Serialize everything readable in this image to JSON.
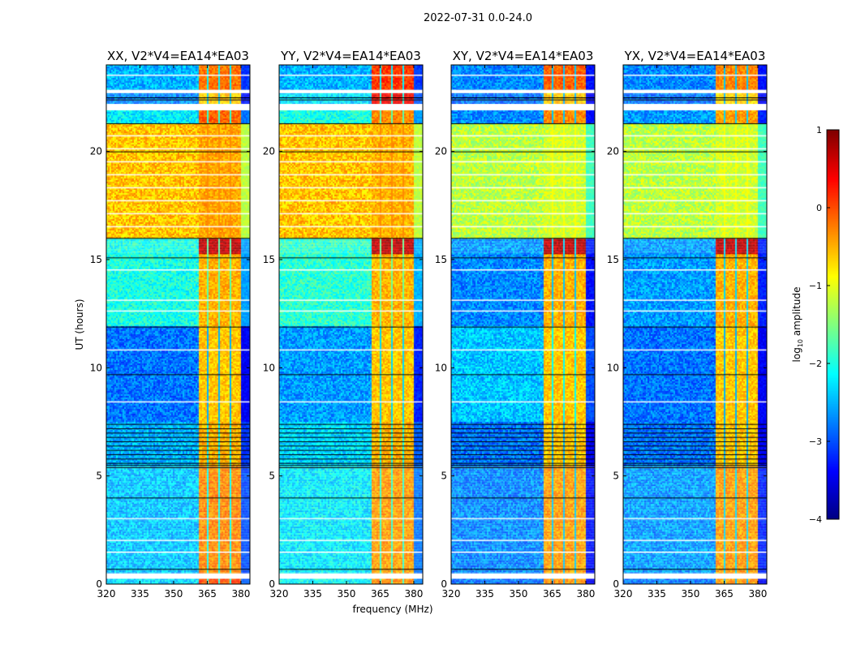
{
  "chart_data": {
    "type": "heatmap",
    "title": "2022-07-31 0.0-24.0",
    "xlabel": "frequency (MHz)",
    "ylabel": "UT (hours)",
    "xlim": [
      320,
      384
    ],
    "ylim": [
      0,
      24
    ],
    "xticks": [
      "320",
      "335",
      "350",
      "365",
      "380"
    ],
    "yticks": [
      "0",
      "5",
      "10",
      "15",
      "20"
    ],
    "colorbar": {
      "label_main": "log",
      "label_sub": "10",
      "label_rest": " amplitude",
      "range": [
        -4,
        1
      ],
      "ticks": [
        "1",
        "0",
        "−1",
        "−2",
        "−3",
        "−4"
      ],
      "colormap": "jet"
    },
    "rfi_band_mhz": [
      360.5,
      380
    ],
    "band_gaps_mhz": [
      365,
      370,
      375
    ],
    "flagged_white_hours": [
      [
        0.25,
        0.5
      ],
      [
        1.45,
        1.5
      ],
      [
        2.0,
        2.05
      ],
      [
        3.0,
        3.05
      ],
      [
        8.4,
        8.45
      ],
      [
        10.8,
        10.85
      ],
      [
        12.6,
        12.65
      ],
      [
        13.1,
        13.15
      ],
      [
        14.5,
        14.55
      ],
      [
        16.5,
        16.55
      ],
      [
        17.1,
        17.15
      ],
      [
        17.7,
        17.75
      ],
      [
        18.3,
        18.35
      ],
      [
        18.9,
        18.95
      ],
      [
        19.5,
        19.55
      ],
      [
        20.1,
        20.15
      ],
      [
        20.7,
        20.75
      ],
      [
        21.9,
        22.2
      ],
      [
        22.7,
        22.85
      ],
      [
        23.5,
        23.55
      ]
    ],
    "black_line_hours": [
      0.7,
      4.0,
      5.4,
      5.5,
      5.6,
      5.8,
      6.0,
      6.2,
      6.4,
      6.6,
      6.8,
      7.0,
      7.2,
      7.4,
      9.7,
      11.9,
      15.1,
      16.0,
      20.0,
      21.3,
      22.4,
      22.5
    ],
    "panels": [
      {
        "title": "XX, V2*V4=EA14*EA03",
        "segments": [
          [
            0,
            0.25,
            -2.3,
            0.0
          ],
          [
            0.5,
            5.5,
            -2.4,
            -0.3
          ],
          [
            5.5,
            7.5,
            -2.5,
            -0.5
          ],
          [
            7.5,
            12,
            -2.8,
            -0.6
          ],
          [
            12,
            15.3,
            -2.0,
            -0.5
          ],
          [
            15.3,
            16,
            -2.0,
            0.7
          ],
          [
            16,
            21.3,
            -0.6,
            -0.45
          ],
          [
            21.3,
            21.9,
            -2.2,
            -0.1
          ],
          [
            22.2,
            22.7,
            -2.7,
            -0.6
          ],
          [
            22.85,
            24,
            -2.5,
            -0.2
          ]
        ]
      },
      {
        "title": "YY, V2*V4=EA14*EA03",
        "segments": [
          [
            0,
            0.25,
            -2.1,
            -0.3
          ],
          [
            0.5,
            5.5,
            -2.2,
            -0.4
          ],
          [
            5.5,
            7.5,
            -2.3,
            -0.5
          ],
          [
            7.5,
            12,
            -2.6,
            -0.6
          ],
          [
            12,
            15.3,
            -1.9,
            -0.5
          ],
          [
            15.3,
            16,
            -1.9,
            0.7
          ],
          [
            16,
            21.3,
            -0.6,
            -0.5
          ],
          [
            21.3,
            21.9,
            -2.0,
            -0.3
          ],
          [
            22.2,
            22.7,
            -2.3,
            0.4
          ],
          [
            22.85,
            24,
            -2.5,
            0.1
          ]
        ]
      },
      {
        "title": "XY, V2*V4=EA14*EA03",
        "segments": [
          [
            0,
            0.25,
            -2.8,
            -0.3
          ],
          [
            0.5,
            5.5,
            -2.7,
            -0.4
          ],
          [
            5.5,
            7.5,
            -2.8,
            -0.6
          ],
          [
            7.5,
            12,
            -2.4,
            -0.6
          ],
          [
            12,
            15.3,
            -2.7,
            -0.5
          ],
          [
            15.3,
            16,
            -2.6,
            0.7
          ],
          [
            16,
            21.3,
            -1.2,
            -1.1
          ],
          [
            21.3,
            21.9,
            -2.7,
            -0.3
          ],
          [
            22.2,
            22.7,
            -2.8,
            -0.6
          ],
          [
            22.85,
            24,
            -2.7,
            -0.1
          ]
        ]
      },
      {
        "title": "YX, V2*V4=EA14*EA03",
        "segments": [
          [
            0,
            0.25,
            -2.8,
            -0.4
          ],
          [
            0.5,
            5.5,
            -2.6,
            -0.4
          ],
          [
            5.5,
            7.5,
            -2.8,
            -0.6
          ],
          [
            7.5,
            12,
            -2.8,
            -0.6
          ],
          [
            12,
            15.3,
            -2.6,
            -0.5
          ],
          [
            15.3,
            16,
            -2.6,
            0.7
          ],
          [
            16,
            21.3,
            -1.2,
            -1.1
          ],
          [
            21.3,
            21.9,
            -2.6,
            -0.4
          ],
          [
            22.2,
            22.7,
            -2.8,
            -0.7
          ],
          [
            22.85,
            24,
            -2.7,
            -0.3
          ]
        ]
      }
    ]
  }
}
